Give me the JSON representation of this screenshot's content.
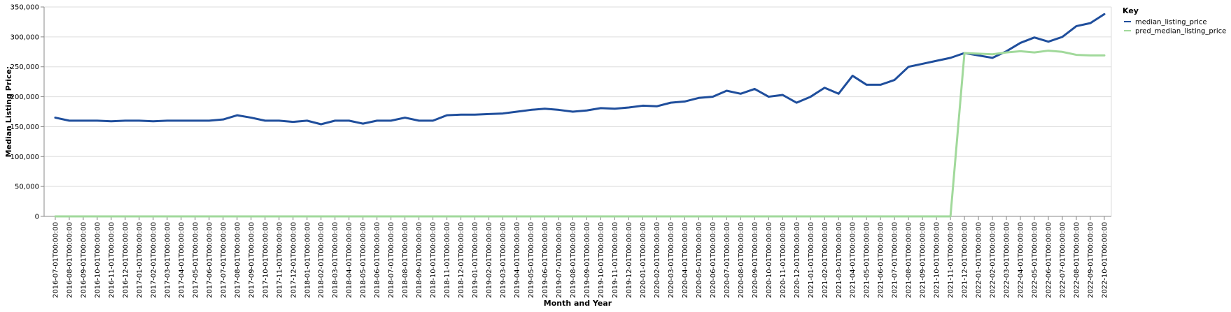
{
  "chart_data": {
    "type": "line",
    "xlabel": "Month and Year",
    "ylabel": "Median Listing Price:",
    "ylim": [
      0,
      350000
    ],
    "yticks": [
      0,
      50000,
      100000,
      150000,
      200000,
      250000,
      300000,
      350000
    ],
    "ytick_labels": [
      "0",
      "50,000",
      "100,000",
      "150,000",
      "200,000",
      "250,000",
      "300,000",
      "350,000"
    ],
    "grid": true,
    "legend": {
      "title": "Key",
      "position": "top-right"
    },
    "x": [
      "2016-07-01T00:00:00",
      "2016-08-01T00:00:00",
      "2016-09-01T00:00:00",
      "2016-10-01T00:00:00",
      "2016-11-01T00:00:00",
      "2016-12-01T00:00:00",
      "2017-01-01T00:00:00",
      "2017-02-01T00:00:00",
      "2017-03-01T00:00:00",
      "2017-04-01T00:00:00",
      "2017-05-01T00:00:00",
      "2017-06-01T00:00:00",
      "2017-07-01T00:00:00",
      "2017-08-01T00:00:00",
      "2017-09-01T00:00:00",
      "2017-10-01T00:00:00",
      "2017-11-01T00:00:00",
      "2017-12-01T00:00:00",
      "2018-01-01T00:00:00",
      "2018-02-01T00:00:00",
      "2018-03-01T00:00:00",
      "2018-04-01T00:00:00",
      "2018-05-01T00:00:00",
      "2018-06-01T00:00:00",
      "2018-07-01T00:00:00",
      "2018-08-01T00:00:00",
      "2018-09-01T00:00:00",
      "2018-10-01T00:00:00",
      "2018-11-01T00:00:00",
      "2018-12-01T00:00:00",
      "2019-01-01T00:00:00",
      "2019-02-01T00:00:00",
      "2019-03-01T00:00:00",
      "2019-04-01T00:00:00",
      "2019-05-01T00:00:00",
      "2019-06-01T00:00:00",
      "2019-07-01T00:00:00",
      "2019-08-01T00:00:00",
      "2019-09-01T00:00:00",
      "2019-10-01T00:00:00",
      "2019-11-01T00:00:00",
      "2019-12-01T00:00:00",
      "2020-01-01T00:00:00",
      "2020-02-01T00:00:00",
      "2020-03-01T00:00:00",
      "2020-04-01T00:00:00",
      "2020-05-01T00:00:00",
      "2020-06-01T00:00:00",
      "2020-07-01T00:00:00",
      "2020-08-01T00:00:00",
      "2020-09-01T00:00:00",
      "2020-10-01T00:00:00",
      "2020-11-01T00:00:00",
      "2020-12-01T00:00:00",
      "2021-01-01T00:00:00",
      "2021-02-01T00:00:00",
      "2021-03-01T00:00:00",
      "2021-04-01T00:00:00",
      "2021-05-01T00:00:00",
      "2021-06-01T00:00:00",
      "2021-07-01T00:00:00",
      "2021-08-01T00:00:00",
      "2021-09-01T00:00:00",
      "2021-10-01T00:00:00",
      "2021-11-01T00:00:00",
      "2021-12-01T00:00:00",
      "2022-01-01T00:00:00",
      "2022-02-01T00:00:00",
      "2022-03-01T00:00:00",
      "2022-04-01T00:00:00",
      "2022-05-01T00:00:00",
      "2022-06-01T00:00:00",
      "2022-07-01T00:00:00",
      "2022-08-01T00:00:00",
      "2022-09-01T00:00:00",
      "2022-10-01T00:00:00"
    ],
    "series": [
      {
        "name": "median_listing_price",
        "color": "#1f4e9c",
        "values": [
          165000,
          160000,
          160000,
          160000,
          159000,
          160000,
          160000,
          159000,
          160000,
          160000,
          160000,
          160000,
          162000,
          169000,
          165000,
          160000,
          160000,
          158000,
          160000,
          154000,
          160000,
          160000,
          155000,
          160000,
          160000,
          165000,
          160000,
          160000,
          169000,
          170000,
          170000,
          171000,
          172000,
          175000,
          178000,
          180000,
          178000,
          175000,
          177000,
          181000,
          180000,
          182000,
          185000,
          184000,
          190000,
          192000,
          198000,
          200000,
          210000,
          205000,
          213000,
          200000,
          203000,
          190000,
          200000,
          215000,
          205000,
          235000,
          220000,
          220000,
          228000,
          250000,
          255000,
          260000,
          265000,
          273000,
          269000,
          265000,
          276000,
          290000,
          299000,
          292000,
          300000,
          318000,
          323000,
          338000
        ]
      },
      {
        "name": "pred_median_listing_price",
        "color": "#a1d99b",
        "values": [
          0,
          0,
          0,
          0,
          0,
          0,
          0,
          0,
          0,
          0,
          0,
          0,
          0,
          0,
          0,
          0,
          0,
          0,
          0,
          0,
          0,
          0,
          0,
          0,
          0,
          0,
          0,
          0,
          0,
          0,
          0,
          0,
          0,
          0,
          0,
          0,
          0,
          0,
          0,
          0,
          0,
          0,
          0,
          0,
          0,
          0,
          0,
          0,
          0,
          0,
          0,
          0,
          0,
          0,
          0,
          0,
          0,
          0,
          0,
          0,
          0,
          0,
          0,
          0,
          0,
          273000,
          272000,
          271000,
          274000,
          276000,
          274000,
          277000,
          275000,
          270000,
          269000,
          269000
        ]
      }
    ]
  }
}
